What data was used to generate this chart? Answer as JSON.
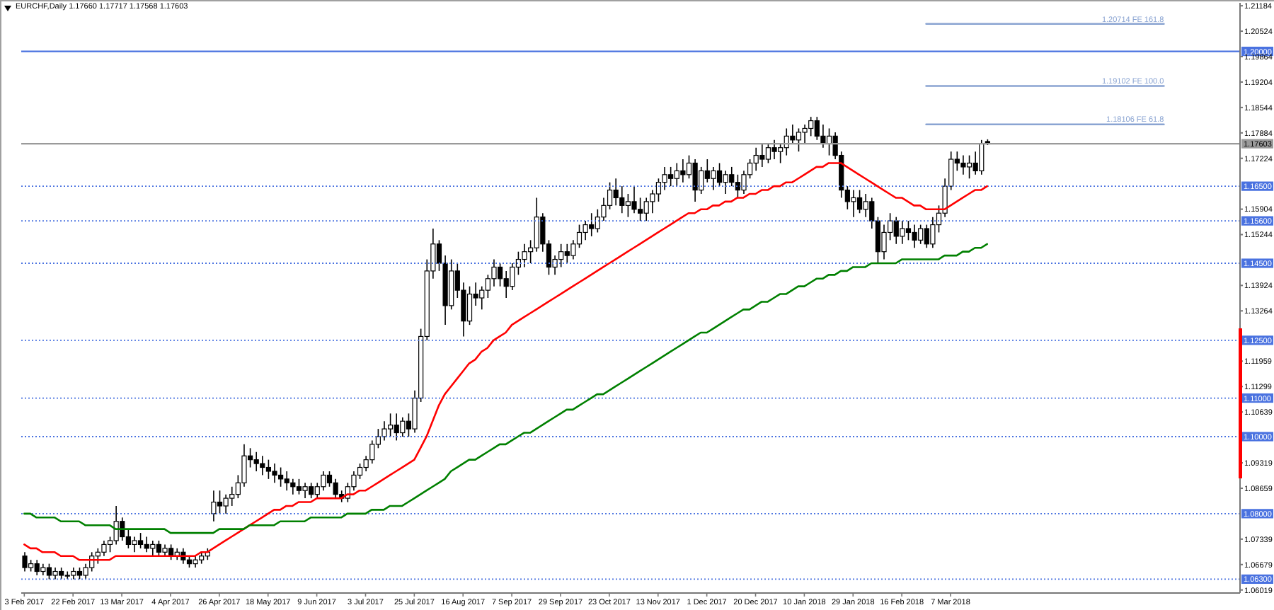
{
  "chart_data": {
    "type": "candlestick",
    "title": "EURCHF,Daily 1.17660 1.17717 1.17568 1.17603",
    "color": "#000000",
    "categories": [
      "3 Feb 2017",
      null,
      null,
      null,
      null,
      null,
      null,
      null,
      "22 Feb 2017",
      null,
      null,
      null,
      null,
      null,
      null,
      null,
      "13 Mar 2017",
      null,
      null,
      null,
      null,
      null,
      null,
      null,
      "4 Apr 2017",
      null,
      null,
      null,
      null,
      null,
      null,
      null,
      "26 Apr 2017",
      null,
      null,
      null,
      null,
      null,
      null,
      null,
      "18 May 2017",
      null,
      null,
      null,
      null,
      null,
      null,
      null,
      "9 Jun 2017",
      null,
      null,
      null,
      null,
      null,
      null,
      null,
      "3 Jul 2017",
      null,
      null,
      null,
      null,
      null,
      null,
      null,
      "25 Jul 2017",
      null,
      null,
      null,
      null,
      null,
      null,
      null,
      "16 Aug 2017",
      null,
      null,
      null,
      null,
      null,
      null,
      null,
      "7 Sep 2017",
      null,
      null,
      null,
      null,
      null,
      null,
      null,
      "29 Sep 2017",
      null,
      null,
      null,
      null,
      null,
      null,
      null,
      "23 Oct 2017",
      null,
      null,
      null,
      null,
      null,
      null,
      null,
      "13 Nov 2017",
      null,
      null,
      null,
      null,
      null,
      null,
      null,
      "1 Dec 2017",
      null,
      null,
      null,
      null,
      null,
      null,
      null,
      "20 Dec 2017",
      null,
      null,
      null,
      null,
      null,
      null,
      null,
      "10 Jan 2018",
      null,
      null,
      null,
      null,
      null,
      null,
      null,
      "29 Jan 2018",
      null,
      null,
      null,
      null,
      null,
      null,
      null,
      "16 Feb 2018",
      null,
      null,
      null,
      null,
      null,
      null,
      null,
      "7 Mar 2018",
      null,
      null,
      null,
      null,
      null,
      null,
      null,
      null,
      null,
      null,
      null,
      null,
      null,
      null,
      null,
      null,
      null,
      null,
      null,
      null,
      null,
      null,
      null,
      null,
      null,
      null,
      null,
      null,
      null,
      null,
      null,
      null,
      null,
      null,
      null,
      null,
      null,
      null,
      null,
      null,
      null,
      null,
      null,
      null,
      null,
      null,
      null
    ],
    "ohlc": [
      [
        1.069,
        1.07,
        1.065,
        1.066
      ],
      [
        1.066,
        1.068,
        1.065,
        1.067
      ],
      [
        1.067,
        1.068,
        1.064,
        1.065
      ],
      [
        1.065,
        1.067,
        1.064,
        1.066
      ],
      [
        1.066,
        1.067,
        1.063,
        1.064
      ],
      [
        1.064,
        1.066,
        1.063,
        1.065
      ],
      [
        1.065,
        1.066,
        1.063,
        1.064
      ],
      [
        1.064,
        1.065,
        1.063,
        1.064
      ],
      [
        1.064,
        1.066,
        1.063,
        1.065
      ],
      [
        1.065,
        1.066,
        1.063,
        1.064
      ],
      [
        1.064,
        1.067,
        1.063,
        1.066
      ],
      [
        1.066,
        1.07,
        1.065,
        1.069
      ],
      [
        1.069,
        1.071,
        1.067,
        1.07
      ],
      [
        1.07,
        1.073,
        1.069,
        1.072
      ],
      [
        1.072,
        1.074,
        1.07,
        1.073
      ],
      [
        1.073,
        1.082,
        1.072,
        1.078
      ],
      [
        1.078,
        1.079,
        1.073,
        1.074
      ],
      [
        1.074,
        1.076,
        1.071,
        1.072
      ],
      [
        1.072,
        1.074,
        1.07,
        1.073
      ],
      [
        1.073,
        1.075,
        1.071,
        1.072
      ],
      [
        1.072,
        1.074,
        1.07,
        1.071
      ],
      [
        1.071,
        1.073,
        1.069,
        1.072
      ],
      [
        1.072,
        1.073,
        1.069,
        1.07
      ],
      [
        1.07,
        1.072,
        1.069,
        1.071
      ],
      [
        1.071,
        1.072,
        1.068,
        1.069
      ],
      [
        1.069,
        1.071,
        1.068,
        1.07
      ],
      [
        1.07,
        1.071,
        1.067,
        1.068
      ],
      [
        1.068,
        1.069,
        1.066,
        1.067
      ],
      [
        1.067,
        1.069,
        1.066,
        1.068
      ],
      [
        1.068,
        1.07,
        1.067,
        1.069
      ],
      [
        1.069,
        1.071,
        1.068,
        1.07
      ],
      [
        1.08,
        1.086,
        1.078,
        1.083
      ],
      [
        1.083,
        1.086,
        1.08,
        1.082
      ],
      [
        1.082,
        1.085,
        1.08,
        1.084
      ],
      [
        1.084,
        1.087,
        1.082,
        1.085
      ],
      [
        1.085,
        1.09,
        1.084,
        1.088
      ],
      [
        1.088,
        1.098,
        1.087,
        1.095
      ],
      [
        1.095,
        1.097,
        1.092,
        1.094
      ],
      [
        1.094,
        1.096,
        1.091,
        1.093
      ],
      [
        1.093,
        1.095,
        1.09,
        1.092
      ],
      [
        1.092,
        1.094,
        1.089,
        1.091
      ],
      [
        1.091,
        1.093,
        1.088,
        1.09
      ],
      [
        1.09,
        1.092,
        1.087,
        1.089
      ],
      [
        1.089,
        1.091,
        1.086,
        1.088
      ],
      [
        1.088,
        1.089,
        1.085,
        1.087
      ],
      [
        1.087,
        1.089,
        1.085,
        1.086
      ],
      [
        1.086,
        1.088,
        1.084,
        1.087
      ],
      [
        1.087,
        1.088,
        1.084,
        1.085
      ],
      [
        1.085,
        1.088,
        1.084,
        1.087
      ],
      [
        1.087,
        1.091,
        1.086,
        1.09
      ],
      [
        1.09,
        1.091,
        1.087,
        1.088
      ],
      [
        1.088,
        1.089,
        1.084,
        1.085
      ],
      [
        1.085,
        1.086,
        1.083,
        1.084
      ],
      [
        1.084,
        1.088,
        1.083,
        1.087
      ],
      [
        1.087,
        1.091,
        1.086,
        1.09
      ],
      [
        1.09,
        1.093,
        1.089,
        1.092
      ],
      [
        1.092,
        1.095,
        1.091,
        1.094
      ],
      [
        1.094,
        1.099,
        1.093,
        1.098
      ],
      [
        1.098,
        1.102,
        1.097,
        1.1
      ],
      [
        1.1,
        1.104,
        1.099,
        1.102
      ],
      [
        1.102,
        1.106,
        1.1,
        1.103
      ],
      [
        1.103,
        1.106,
        1.099,
        1.101
      ],
      [
        1.101,
        1.105,
        1.1,
        1.104
      ],
      [
        1.104,
        1.106,
        1.1,
        1.102
      ],
      [
        1.102,
        1.112,
        1.101,
        1.11
      ],
      [
        1.11,
        1.128,
        1.109,
        1.126
      ],
      [
        1.126,
        1.146,
        1.125,
        1.143
      ],
      [
        1.143,
        1.154,
        1.141,
        1.15
      ],
      [
        1.15,
        1.151,
        1.143,
        1.145
      ],
      [
        1.145,
        1.147,
        1.129,
        1.134
      ],
      [
        1.134,
        1.146,
        1.133,
        1.143
      ],
      [
        1.143,
        1.145,
        1.136,
        1.138
      ],
      [
        1.138,
        1.14,
        1.126,
        1.13
      ],
      [
        1.13,
        1.139,
        1.129,
        1.137
      ],
      [
        1.137,
        1.14,
        1.134,
        1.136
      ],
      [
        1.136,
        1.139,
        1.133,
        1.138
      ],
      [
        1.138,
        1.142,
        1.136,
        1.141
      ],
      [
        1.141,
        1.146,
        1.139,
        1.144
      ],
      [
        1.144,
        1.145,
        1.139,
        1.141
      ],
      [
        1.141,
        1.143,
        1.136,
        1.139
      ],
      [
        1.139,
        1.145,
        1.138,
        1.144
      ],
      [
        1.144,
        1.148,
        1.142,
        1.146
      ],
      [
        1.146,
        1.15,
        1.144,
        1.148
      ],
      [
        1.148,
        1.151,
        1.145,
        1.149
      ],
      [
        1.149,
        1.162,
        1.148,
        1.157
      ],
      [
        1.157,
        1.158,
        1.148,
        1.15
      ],
      [
        1.15,
        1.151,
        1.142,
        1.144
      ],
      [
        1.144,
        1.147,
        1.142,
        1.146
      ],
      [
        1.146,
        1.15,
        1.144,
        1.148
      ],
      [
        1.148,
        1.15,
        1.145,
        1.147
      ],
      [
        1.147,
        1.151,
        1.146,
        1.15
      ],
      [
        1.15,
        1.155,
        1.149,
        1.153
      ],
      [
        1.153,
        1.156,
        1.151,
        1.155
      ],
      [
        1.155,
        1.158,
        1.152,
        1.154
      ],
      [
        1.154,
        1.159,
        1.153,
        1.157
      ],
      [
        1.157,
        1.162,
        1.156,
        1.16
      ],
      [
        1.16,
        1.166,
        1.159,
        1.164
      ],
      [
        1.164,
        1.167,
        1.16,
        1.162
      ],
      [
        1.162,
        1.165,
        1.158,
        1.16
      ],
      [
        1.16,
        1.163,
        1.157,
        1.161
      ],
      [
        1.161,
        1.165,
        1.158,
        1.159
      ],
      [
        1.159,
        1.162,
        1.156,
        1.158
      ],
      [
        1.158,
        1.162,
        1.156,
        1.161
      ],
      [
        1.161,
        1.164,
        1.158,
        1.163
      ],
      [
        1.163,
        1.167,
        1.161,
        1.166
      ],
      [
        1.166,
        1.17,
        1.164,
        1.168
      ],
      [
        1.168,
        1.17,
        1.165,
        1.167
      ],
      [
        1.167,
        1.171,
        1.165,
        1.169
      ],
      [
        1.169,
        1.172,
        1.166,
        1.168
      ],
      [
        1.168,
        1.173,
        1.167,
        1.171
      ],
      [
        1.171,
        1.172,
        1.161,
        1.164
      ],
      [
        1.164,
        1.17,
        1.163,
        1.169
      ],
      [
        1.169,
        1.172,
        1.166,
        1.167
      ],
      [
        1.167,
        1.17,
        1.164,
        1.169
      ],
      [
        1.169,
        1.171,
        1.165,
        1.166
      ],
      [
        1.166,
        1.169,
        1.163,
        1.168
      ],
      [
        1.168,
        1.17,
        1.165,
        1.166
      ],
      [
        1.166,
        1.168,
        1.162,
        1.164
      ],
      [
        1.164,
        1.169,
        1.163,
        1.168
      ],
      [
        1.168,
        1.172,
        1.167,
        1.171
      ],
      [
        1.171,
        1.175,
        1.169,
        1.173
      ],
      [
        1.173,
        1.176,
        1.17,
        1.172
      ],
      [
        1.172,
        1.176,
        1.171,
        1.175
      ],
      [
        1.175,
        1.177,
        1.172,
        1.174
      ],
      [
        1.174,
        1.176,
        1.171,
        1.175
      ],
      [
        1.175,
        1.18,
        1.173,
        1.178
      ],
      [
        1.178,
        1.181,
        1.176,
        1.177
      ],
      [
        1.177,
        1.18,
        1.174,
        1.179
      ],
      [
        1.179,
        1.181,
        1.176,
        1.18
      ],
      [
        1.18,
        1.183,
        1.178,
        1.182
      ],
      [
        1.182,
        1.183,
        1.177,
        1.178
      ],
      [
        1.178,
        1.181,
        1.175,
        1.176
      ],
      [
        1.176,
        1.18,
        1.173,
        1.178
      ],
      [
        1.178,
        1.179,
        1.172,
        1.173
      ],
      [
        1.173,
        1.174,
        1.162,
        1.164
      ],
      [
        1.164,
        1.165,
        1.159,
        1.161
      ],
      [
        1.161,
        1.164,
        1.157,
        1.162
      ],
      [
        1.162,
        1.164,
        1.158,
        1.159
      ],
      [
        1.159,
        1.163,
        1.157,
        1.161
      ],
      [
        1.161,
        1.162,
        1.154,
        1.156
      ],
      [
        1.156,
        1.157,
        1.145,
        1.148
      ],
      [
        1.148,
        1.155,
        1.146,
        1.153
      ],
      [
        1.153,
        1.158,
        1.151,
        1.156
      ],
      [
        1.156,
        1.157,
        1.15,
        1.152
      ],
      [
        1.152,
        1.156,
        1.15,
        1.154
      ],
      [
        1.154,
        1.156,
        1.151,
        1.153
      ],
      [
        1.153,
        1.155,
        1.149,
        1.151
      ],
      [
        1.151,
        1.155,
        1.15,
        1.154
      ],
      [
        1.154,
        1.155,
        1.149,
        1.15
      ],
      [
        1.15,
        1.157,
        1.149,
        1.155
      ],
      [
        1.155,
        1.16,
        1.153,
        1.158
      ],
      [
        1.158,
        1.167,
        1.157,
        1.165
      ],
      [
        1.165,
        1.174,
        1.164,
        1.172
      ],
      [
        1.172,
        1.174,
        1.169,
        1.171
      ],
      [
        1.171,
        1.173,
        1.168,
        1.17
      ],
      [
        1.17,
        1.173,
        1.167,
        1.171
      ],
      [
        1.171,
        1.174,
        1.168,
        1.169
      ],
      [
        1.169,
        1.177,
        1.168,
        1.176
      ],
      [
        1.1766,
        1.17717,
        1.17568,
        1.17603
      ],
      null,
      null,
      null,
      null,
      null,
      null,
      null,
      null,
      null,
      null,
      null,
      null,
      null,
      null,
      null,
      null,
      null,
      null,
      null,
      null,
      null,
      null,
      null,
      null,
      null,
      null,
      null,
      null,
      null,
      null,
      null,
      null,
      null,
      null,
      null,
      null,
      null,
      null,
      null,
      null,
      null
    ],
    "series": [
      {
        "type": "line",
        "color": "#ff0000",
        "values": [
          1.072,
          1.071,
          1.071,
          1.07,
          1.07,
          1.07,
          1.069,
          1.069,
          1.069,
          1.068,
          1.068,
          1.068,
          1.068,
          1.068,
          1.068,
          1.069,
          1.069,
          1.069,
          1.069,
          1.069,
          1.069,
          1.069,
          1.069,
          1.069,
          1.069,
          1.069,
          1.069,
          1.069,
          1.069,
          1.07,
          1.07,
          1.071,
          1.072,
          1.073,
          1.074,
          1.075,
          1.076,
          1.077,
          1.078,
          1.079,
          1.08,
          1.081,
          1.081,
          1.082,
          1.082,
          1.083,
          1.083,
          1.083,
          1.084,
          1.084,
          1.084,
          1.084,
          1.084,
          1.085,
          1.085,
          1.086,
          1.086,
          1.087,
          1.088,
          1.089,
          1.09,
          1.091,
          1.092,
          1.093,
          1.094,
          1.097,
          1.1,
          1.104,
          1.108,
          1.111,
          1.113,
          1.115,
          1.117,
          1.119,
          1.12,
          1.122,
          1.123,
          1.125,
          1.126,
          1.127,
          1.129,
          1.13,
          1.131,
          1.132,
          1.133,
          1.134,
          1.135,
          1.136,
          1.137,
          1.138,
          1.139,
          1.14,
          1.141,
          1.142,
          1.143,
          1.144,
          1.145,
          1.146,
          1.147,
          1.148,
          1.149,
          1.15,
          1.151,
          1.152,
          1.153,
          1.154,
          1.155,
          1.156,
          1.157,
          1.158,
          1.158,
          1.159,
          1.159,
          1.16,
          1.16,
          1.161,
          1.161,
          1.162,
          1.162,
          1.163,
          1.163,
          1.164,
          1.164,
          1.165,
          1.165,
          1.166,
          1.166,
          1.167,
          1.168,
          1.169,
          1.17,
          1.17,
          1.171,
          1.171,
          1.171,
          1.17,
          1.169,
          1.168,
          1.167,
          1.166,
          1.165,
          1.164,
          1.163,
          1.162,
          1.162,
          1.161,
          1.16,
          1.16,
          1.159,
          1.159,
          1.159,
          1.159,
          1.16,
          1.161,
          1.162,
          1.163,
          1.164,
          1.164,
          1.165,
          null,
          null,
          null,
          null,
          null,
          null,
          null,
          null,
          null,
          null,
          null,
          null,
          null,
          null,
          null,
          null,
          null,
          null,
          null,
          null,
          null,
          null,
          null,
          null,
          null,
          null,
          null,
          null,
          null,
          null,
          null,
          null,
          null,
          null,
          null,
          null,
          null,
          null,
          null,
          null,
          null
        ]
      },
      {
        "type": "line",
        "color": "#008000",
        "values": [
          1.08,
          1.08,
          1.079,
          1.079,
          1.079,
          1.079,
          1.078,
          1.078,
          1.078,
          1.078,
          1.077,
          1.077,
          1.077,
          1.077,
          1.077,
          1.076,
          1.076,
          1.076,
          1.076,
          1.076,
          1.076,
          1.076,
          1.076,
          1.076,
          1.075,
          1.075,
          1.075,
          1.075,
          1.075,
          1.075,
          1.075,
          1.075,
          1.076,
          1.076,
          1.076,
          1.076,
          1.076,
          1.077,
          1.077,
          1.077,
          1.077,
          1.077,
          1.078,
          1.078,
          1.078,
          1.078,
          1.078,
          1.079,
          1.079,
          1.079,
          1.079,
          1.079,
          1.079,
          1.08,
          1.08,
          1.08,
          1.08,
          1.081,
          1.081,
          1.081,
          1.082,
          1.082,
          1.082,
          1.083,
          1.084,
          1.085,
          1.086,
          1.087,
          1.088,
          1.089,
          1.091,
          1.092,
          1.093,
          1.094,
          1.094,
          1.095,
          1.096,
          1.097,
          1.098,
          1.098,
          1.099,
          1.1,
          1.101,
          1.101,
          1.102,
          1.103,
          1.104,
          1.105,
          1.106,
          1.107,
          1.107,
          1.108,
          1.109,
          1.11,
          1.111,
          1.111,
          1.112,
          1.113,
          1.114,
          1.115,
          1.116,
          1.117,
          1.118,
          1.119,
          1.12,
          1.121,
          1.122,
          1.123,
          1.124,
          1.125,
          1.126,
          1.127,
          1.127,
          1.128,
          1.129,
          1.13,
          1.131,
          1.132,
          1.133,
          1.133,
          1.134,
          1.135,
          1.135,
          1.136,
          1.137,
          1.137,
          1.138,
          1.139,
          1.139,
          1.14,
          1.141,
          1.141,
          1.142,
          1.142,
          1.143,
          1.143,
          1.144,
          1.144,
          1.144,
          1.145,
          1.145,
          1.145,
          1.145,
          1.145,
          1.146,
          1.146,
          1.146,
          1.146,
          1.146,
          1.146,
          1.146,
          1.147,
          1.147,
          1.147,
          1.148,
          1.148,
          1.149,
          1.149,
          1.15,
          null,
          null,
          null,
          null,
          null,
          null,
          null,
          null,
          null,
          null,
          null,
          null,
          null,
          null,
          null,
          null,
          null,
          null,
          null,
          null,
          null,
          null,
          null,
          null,
          null,
          null,
          null,
          null,
          null,
          null,
          null,
          null,
          null,
          null,
          null,
          null,
          null,
          null,
          null,
          null,
          null
        ]
      },
      {
        "type": "line",
        "color": "#8aa4d2",
        "values": [
          null,
          null,
          null,
          null,
          null,
          null,
          null,
          null,
          null,
          null,
          null,
          null,
          null,
          null,
          null,
          null,
          null,
          null,
          null,
          null,
          null,
          null,
          null,
          null,
          null,
          null,
          null,
          null,
          null,
          null,
          null,
          null,
          null,
          null,
          null,
          null,
          null,
          null,
          null,
          null,
          null,
          null,
          null,
          null,
          null,
          null,
          null,
          null,
          null,
          null,
          null,
          null,
          null,
          null,
          null,
          null,
          null,
          null,
          null,
          null,
          null,
          null,
          null,
          null,
          null,
          null,
          null,
          null,
          null,
          null,
          null,
          null,
          null,
          null,
          null,
          null,
          null,
          null,
          null,
          null,
          null,
          null,
          null,
          null,
          null,
          null,
          null,
          null,
          null,
          null,
          null,
          null,
          null,
          null,
          null,
          null,
          null,
          null,
          null,
          null,
          null,
          null,
          null,
          null,
          null,
          null,
          null,
          null,
          null,
          null,
          null,
          null,
          null,
          null,
          null,
          null,
          null,
          null,
          null,
          null,
          null,
          null,
          null,
          null,
          null,
          null,
          null,
          null,
          null,
          null,
          null,
          null,
          null,
          null,
          null,
          null,
          null,
          null,
          null,
          null,
          null,
          null,
          null,
          null,
          null,
          null,
          null,
          null,
          1.20714,
          1.20714,
          1.20714,
          1.20714,
          1.20714,
          1.20714,
          1.20714,
          1.20714,
          1.20714,
          1.20714,
          1.20714,
          1.20714,
          1.20714,
          1.20714,
          1.20714,
          1.20714,
          1.20714,
          1.20714,
          1.20714,
          1.20714,
          1.20714,
          1.20714,
          1.20714,
          1.20714,
          1.20714,
          1.20714,
          1.20714,
          1.20714,
          1.20714,
          1.20714,
          1.20714,
          1.20714,
          1.20714,
          1.20714,
          1.20714,
          1.20714,
          1.20714,
          1.20714,
          1.20714,
          1.20714,
          null,
          null,
          null,
          null,
          null,
          null,
          null,
          null,
          null,
          null,
          null,
          null
        ]
      },
      {
        "type": "line",
        "color": "#8aa4d2",
        "values": [
          null,
          null,
          null,
          null,
          null,
          null,
          null,
          null,
          null,
          null,
          null,
          null,
          null,
          null,
          null,
          null,
          null,
          null,
          null,
          null,
          null,
          null,
          null,
          null,
          null,
          null,
          null,
          null,
          null,
          null,
          null,
          null,
          null,
          null,
          null,
          null,
          null,
          null,
          null,
          null,
          null,
          null,
          null,
          null,
          null,
          null,
          null,
          null,
          null,
          null,
          null,
          null,
          null,
          null,
          null,
          null,
          null,
          null,
          null,
          null,
          null,
          null,
          null,
          null,
          null,
          null,
          null,
          null,
          null,
          null,
          null,
          null,
          null,
          null,
          null,
          null,
          null,
          null,
          null,
          null,
          null,
          null,
          null,
          null,
          null,
          null,
          null,
          null,
          null,
          null,
          null,
          null,
          null,
          null,
          null,
          null,
          null,
          null,
          null,
          null,
          null,
          null,
          null,
          null,
          null,
          null,
          null,
          null,
          null,
          null,
          null,
          null,
          null,
          null,
          null,
          null,
          null,
          null,
          null,
          null,
          null,
          null,
          null,
          null,
          null,
          null,
          null,
          null,
          null,
          null,
          null,
          null,
          null,
          null,
          null,
          null,
          null,
          null,
          null,
          null,
          null,
          null,
          null,
          null,
          null,
          null,
          null,
          null,
          1.19102,
          1.19102,
          1.19102,
          1.19102,
          1.19102,
          1.19102,
          1.19102,
          1.19102,
          1.19102,
          1.19102,
          1.19102,
          1.19102,
          1.19102,
          1.19102,
          1.19102,
          1.19102,
          1.19102,
          1.19102,
          1.19102,
          1.19102,
          1.19102,
          1.19102,
          1.19102,
          1.19102,
          1.19102,
          1.19102,
          1.19102,
          1.19102,
          1.19102,
          1.19102,
          1.19102,
          1.19102,
          1.19102,
          1.19102,
          1.19102,
          1.19102,
          1.19102,
          1.19102,
          1.19102,
          1.19102,
          null,
          null,
          null,
          null,
          null,
          null,
          null,
          null,
          null,
          null,
          null,
          null
        ]
      },
      {
        "type": "line",
        "color": "#8aa4d2",
        "values": [
          null,
          null,
          null,
          null,
          null,
          null,
          null,
          null,
          null,
          null,
          null,
          null,
          null,
          null,
          null,
          null,
          null,
          null,
          null,
          null,
          null,
          null,
          null,
          null,
          null,
          null,
          null,
          null,
          null,
          null,
          null,
          null,
          null,
          null,
          null,
          null,
          null,
          null,
          null,
          null,
          null,
          null,
          null,
          null,
          null,
          null,
          null,
          null,
          null,
          null,
          null,
          null,
          null,
          null,
          null,
          null,
          null,
          null,
          null,
          null,
          null,
          null,
          null,
          null,
          null,
          null,
          null,
          null,
          null,
          null,
          null,
          null,
          null,
          null,
          null,
          null,
          null,
          null,
          null,
          null,
          null,
          null,
          null,
          null,
          null,
          null,
          null,
          null,
          null,
          null,
          null,
          null,
          null,
          null,
          null,
          null,
          null,
          null,
          null,
          null,
          null,
          null,
          null,
          null,
          null,
          null,
          null,
          null,
          null,
          null,
          null,
          null,
          null,
          null,
          null,
          null,
          null,
          null,
          null,
          null,
          null,
          null,
          null,
          null,
          null,
          null,
          null,
          null,
          null,
          null,
          null,
          null,
          null,
          null,
          null,
          null,
          null,
          null,
          null,
          null,
          null,
          null,
          null,
          null,
          null,
          null,
          null,
          null,
          1.18106,
          1.18106,
          1.18106,
          1.18106,
          1.18106,
          1.18106,
          1.18106,
          1.18106,
          1.18106,
          1.18106,
          1.18106,
          1.18106,
          1.18106,
          1.18106,
          1.18106,
          1.18106,
          1.18106,
          1.18106,
          1.18106,
          1.18106,
          1.18106,
          1.18106,
          1.18106,
          1.18106,
          1.18106,
          1.18106,
          1.18106,
          1.18106,
          1.18106,
          1.18106,
          1.18106,
          1.18106,
          1.18106,
          1.18106,
          1.18106,
          1.18106,
          1.18106,
          1.18106,
          1.18106,
          1.18106,
          null,
          null,
          null,
          null,
          null,
          null,
          null,
          null,
          null,
          null,
          null,
          null
        ]
      }
    ],
    "annotations": [
      {
        "text": "1.20714 FE 161.8",
        "y": 1.20714
      },
      {
        "text": "1.19102 FE 100.0",
        "y": 1.19102
      },
      {
        "text": "1.18106 FE 61.8",
        "y": 1.18106
      }
    ],
    "ylim": [
      1.0594,
      1.2126
    ],
    "yticks": [
      1.21184,
      1.20524,
      1.19864,
      1.19204,
      1.18544,
      1.17884,
      1.17224,
      1.15904,
      1.15244,
      1.13924,
      1.13264,
      1.11959,
      1.11299,
      1.10639,
      1.09319,
      1.08659,
      1.07339,
      1.06679,
      1.06019
    ],
    "ref_lines": [
      {
        "axis": "y",
        "value": 1.2,
        "label": "1.20000",
        "color": "#4a72e0",
        "line_style": "solid"
      },
      {
        "axis": "y",
        "value": 1.17603,
        "label": "1.17603",
        "color": "#9a9a9a",
        "line_style": "solid"
      },
      {
        "axis": "y",
        "value": 1.165,
        "label": "1.16500",
        "color": "#4a72e0",
        "line_style": "dotted"
      },
      {
        "axis": "y",
        "value": 1.156,
        "label": "1.15600",
        "color": "#4a72e0",
        "line_style": "dotted"
      },
      {
        "axis": "y",
        "value": 1.145,
        "label": "1.14500",
        "color": "#4a72e0",
        "line_style": "dotted"
      },
      {
        "axis": "y",
        "value": 1.125,
        "label": "1.12500",
        "color": "#4a72e0",
        "line_style": "dotted"
      },
      {
        "axis": "y",
        "value": 1.11,
        "label": "1.11000",
        "color": "#4a72e0",
        "line_style": "dotted"
      },
      {
        "axis": "y",
        "value": 1.1,
        "label": "1.10000",
        "color": "#4a72e0",
        "line_style": "dotted"
      },
      {
        "axis": "y",
        "value": 1.08,
        "label": "1.08000",
        "color": "#4a72e0",
        "line_style": "dotted"
      },
      {
        "axis": "y",
        "value": 1.063,
        "label": "1.06300",
        "color": "#4a72e0",
        "line_style": "dotted"
      }
    ]
  }
}
